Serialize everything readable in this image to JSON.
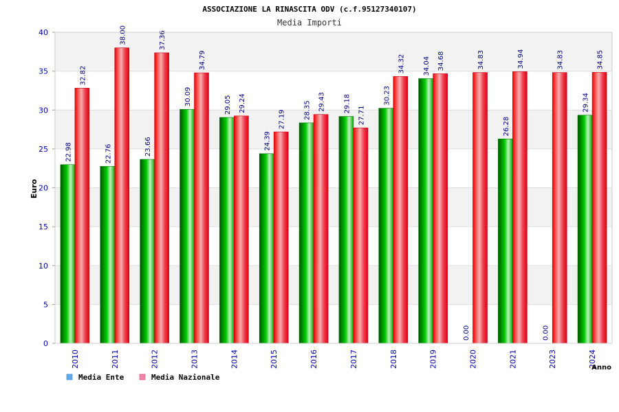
{
  "chart_data": {
    "type": "bar",
    "title": "ASSOCIAZIONE LA RINASCITA ODV (c.f.95127340107)",
    "subtitle": "Media Importi",
    "xlabel": "Anno",
    "ylabel": "Euro",
    "ylim": [
      0,
      40
    ],
    "yticks": [
      "0",
      "5",
      "10",
      "15",
      "20",
      "25",
      "30",
      "35",
      "40"
    ],
    "grid": true,
    "legend_position": "bottom-left",
    "categories": [
      "2010",
      "2011",
      "2012",
      "2013",
      "2014",
      "2015",
      "2016",
      "2017",
      "2018",
      "2019",
      "2020",
      "2021",
      "2023",
      "2024"
    ],
    "series": [
      {
        "name": "Media Ente",
        "color": "#00bb00",
        "legend_color": "#66aaee",
        "values": [
          22.98,
          22.76,
          23.66,
          30.09,
          29.05,
          24.39,
          28.35,
          29.18,
          30.23,
          34.04,
          0.0,
          26.28,
          0.0,
          29.34
        ],
        "labels": [
          "22.98",
          "22.76",
          "23.66",
          "30.09",
          "29.05",
          "24.39",
          "28.35",
          "29.18",
          "30.23",
          "34.04",
          "0.00",
          "26.28",
          "0.00",
          "29.34"
        ]
      },
      {
        "name": "Media Nazionale",
        "color": "#ee1122",
        "legend_color": "#ee88aa",
        "values": [
          32.82,
          38.0,
          37.36,
          34.79,
          29.24,
          27.19,
          29.43,
          27.71,
          34.32,
          34.68,
          34.83,
          34.94,
          34.83,
          34.85
        ],
        "labels": [
          "32.82",
          "38.00",
          "37.36",
          "34.79",
          "29.24",
          "27.19",
          "29.43",
          "27.71",
          "34.32",
          "34.68",
          "34.83",
          "34.94",
          "34.83",
          "34.85"
        ]
      }
    ],
    "colors": {
      "band": "#f2f2f2",
      "gridline": "#dddddd",
      "axis_text": "#0000aa",
      "label_text": "#000080"
    }
  }
}
